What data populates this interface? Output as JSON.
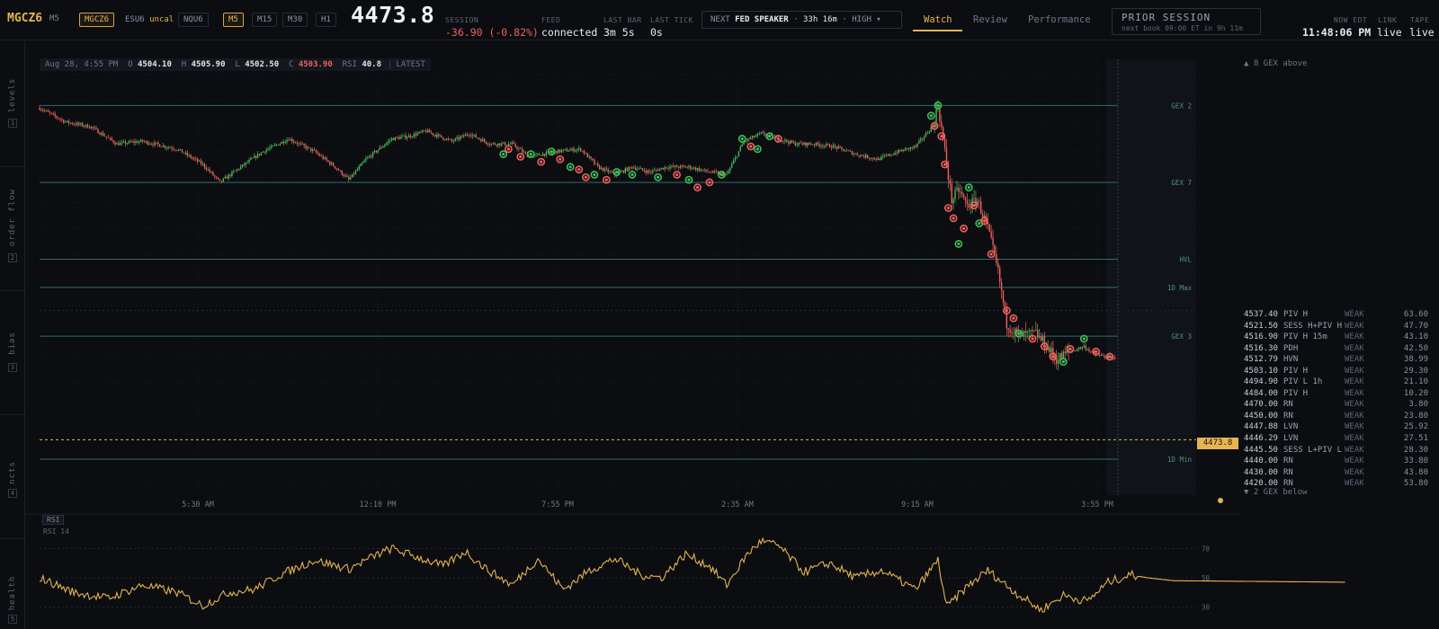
{
  "header": {
    "symbol": "MGCZ6",
    "timeframe": "M5",
    "instruments": [
      {
        "label": "MGCZ6",
        "active": true
      },
      {
        "label": "ESU6",
        "badge": "uncal",
        "active": false
      },
      {
        "label": "NQU6",
        "active": false
      }
    ],
    "timeframes": [
      {
        "label": "M5",
        "active": true
      },
      {
        "label": "M15",
        "active": false
      },
      {
        "label": "M30",
        "active": false
      },
      {
        "label": "H1",
        "active": false
      }
    ],
    "last_price": "4473.8",
    "session_label": "SESSION",
    "session_change": "-36.90 (-0.82%)",
    "feed_label": "FEED",
    "feed_value": "connected",
    "last_bar_label": "LAST BAR",
    "last_bar_value": "3m 5s",
    "last_tick_label": "LAST TICK",
    "last_tick_value": "0s",
    "event": {
      "prefix": "NEXT",
      "name": "FED SPEAKER",
      "countdown": "33h 16m",
      "impact": "HIGH",
      "chevron": "▾"
    },
    "tabs": [
      {
        "label": "Watch",
        "active": true
      },
      {
        "label": "Review",
        "active": false
      },
      {
        "label": "Performance",
        "active": false
      }
    ],
    "prior_session": {
      "title": "PRIOR SESSION",
      "subtitle": "next book 09:00 ET in 9h 11m"
    },
    "clock_label": "NOW EDT",
    "clock_value": "11:48:06 PM",
    "link_label": "LINK",
    "link_value": "live",
    "tape_label": "TAPE",
    "tape_value": "live"
  },
  "sidebar": [
    {
      "label": "levels",
      "num": "1"
    },
    {
      "label": "order flow",
      "num": "2"
    },
    {
      "label": "bias",
      "num": "3"
    },
    {
      "label": "ncts",
      "num": "4"
    },
    {
      "label": "health",
      "num": "5"
    }
  ],
  "ohlc": {
    "time": "Aug 28, 4:55 PM",
    "o_label": "O",
    "o": "4504.10",
    "h_label": "H",
    "h": "4505.90",
    "l_label": "L",
    "l": "4502.50",
    "c_label": "C",
    "c": "4503.90",
    "rsi_label": "RSI",
    "rsi": "40.8",
    "latest": "LATEST"
  },
  "gex_above": "▲ 8 GEX above",
  "gex_below": "▼ 2 GEX below",
  "current_price_tag": "4473.8",
  "levels": [
    {
      "price": "4537.40",
      "name": "PIV H",
      "strength": "WEAK",
      "score": "63.60"
    },
    {
      "price": "4521.50",
      "name": "SESS H+PIV H",
      "strength": "WEAK",
      "score": "47.70"
    },
    {
      "price": "4516.90",
      "name": "PIV H 15m",
      "strength": "WEAK",
      "score": "43.10"
    },
    {
      "price": "4516.30",
      "name": "PDH",
      "strength": "WEAK",
      "score": "42.50"
    },
    {
      "price": "4512.79",
      "name": "HVN",
      "strength": "WEAK",
      "score": "38.99"
    },
    {
      "price": "4503.10",
      "name": "PIV H",
      "strength": "WEAK",
      "score": "29.30"
    },
    {
      "price": "4494.90",
      "name": "PIV L 1h",
      "strength": "WEAK",
      "score": "21.10"
    },
    {
      "price": "4484.00",
      "name": "PIV H",
      "strength": "WEAK",
      "score": "10.20"
    },
    {
      "price": "4470.00",
      "name": "RN",
      "strength": "WEAK",
      "score": "3.80"
    },
    {
      "price": "4450.00",
      "name": "RN",
      "strength": "WEAK",
      "score": "23.80"
    },
    {
      "price": "4447.88",
      "name": "LVN",
      "strength": "WEAK",
      "score": "25.92"
    },
    {
      "price": "4446.29",
      "name": "LVN",
      "strength": "WEAK",
      "score": "27.51"
    },
    {
      "price": "4445.50",
      "name": "SESS L+PIV L",
      "strength": "WEAK",
      "score": "28.30"
    },
    {
      "price": "4440.00",
      "name": "RN",
      "strength": "WEAK",
      "score": "33.80"
    },
    {
      "price": "4430.00",
      "name": "RN",
      "strength": "WEAK",
      "score": "43.80"
    },
    {
      "price": "4420.00",
      "name": "RN",
      "strength": "WEAK",
      "score": "53.80"
    }
  ],
  "rsi_panel": {
    "badge": "RSI",
    "sub": "RSI 14"
  },
  "colors": {
    "accent": "#e6b450",
    "up": "#3fbf5a",
    "down": "#f0605d",
    "level_line": "#2f6f6a",
    "level_text": "#4f8f88",
    "grid": "#1a1e26"
  },
  "chart_data": [
    {
      "type": "candlestick",
      "x_ticks": [
        "5:30 AM",
        "12:10 PM",
        "7:55 PM",
        "2:35 AM",
        "9:15 AM",
        "3:55 PM"
      ],
      "ylim": [
        4463,
        4548
      ],
      "current_price": 4473.8,
      "level_lines": [
        {
          "label": "GEX 2",
          "value": 4539.0
        },
        {
          "label": "GEX 7",
          "value": 4524.0
        },
        {
          "label": "HVL",
          "value": 4509.0
        },
        {
          "label": "1D Max",
          "value": 4503.5
        },
        {
          "label": "GEX 3",
          "value": 4494.0
        },
        {
          "label": "1D Min",
          "value": 4470.0
        }
      ],
      "close_anchors": [
        [
          0,
          4538.5
        ],
        [
          15,
          4535.8
        ],
        [
          30,
          4534.8
        ],
        [
          45,
          4531.5
        ],
        [
          60,
          4532.0
        ],
        [
          80,
          4530.5
        ],
        [
          95,
          4527.5
        ],
        [
          105,
          4524.0
        ],
        [
          115,
          4526.5
        ],
        [
          130,
          4530.0
        ],
        [
          145,
          4532.5
        ],
        [
          160,
          4530.0
        ],
        [
          172,
          4527.0
        ],
        [
          180,
          4524.5
        ],
        [
          190,
          4528.5
        ],
        [
          205,
          4532.5
        ],
        [
          215,
          4533.0
        ],
        [
          225,
          4534.0
        ],
        [
          240,
          4532.0
        ],
        [
          250,
          4533.5
        ],
        [
          262,
          4531.5
        ],
        [
          275,
          4531.5
        ],
        [
          285,
          4529.0
        ],
        [
          300,
          4530.0
        ],
        [
          315,
          4530.5
        ],
        [
          325,
          4527.0
        ],
        [
          335,
          4525.5
        ],
        [
          345,
          4527.0
        ],
        [
          355,
          4526.0
        ],
        [
          365,
          4527.0
        ],
        [
          378,
          4527.0
        ],
        [
          390,
          4526.0
        ],
        [
          400,
          4525.5
        ],
        [
          410,
          4532.0
        ],
        [
          420,
          4533.5
        ],
        [
          430,
          4532.5
        ],
        [
          440,
          4531.5
        ],
        [
          450,
          4531.5
        ],
        [
          462,
          4531.0
        ],
        [
          475,
          4529.5
        ],
        [
          488,
          4528.5
        ],
        [
          500,
          4530.0
        ],
        [
          510,
          4531.0
        ],
        [
          520,
          4535.0
        ],
        [
          523,
          4539.0
        ],
        [
          527,
          4530.0
        ],
        [
          531,
          4520.5
        ],
        [
          535,
          4522.5
        ],
        [
          540,
          4519.5
        ],
        [
          546,
          4520.5
        ],
        [
          552,
          4515.0
        ],
        [
          558,
          4506.5
        ],
        [
          563,
          4496.5
        ],
        [
          570,
          4494.0
        ],
        [
          580,
          4494.5
        ],
        [
          585,
          4492.5
        ],
        [
          592,
          4489.5
        ],
        [
          600,
          4491.0
        ],
        [
          608,
          4492.0
        ],
        [
          614,
          4490.5
        ],
        [
          620,
          4490.0
        ],
        [
          626,
          4489.5
        ]
      ],
      "signal_markers": [
        {
          "side": "up",
          "x": 270,
          "y": 4529.5
        },
        {
          "side": "down",
          "x": 273,
          "y": 4530.5
        },
        {
          "side": "down",
          "x": 280,
          "y": 4529.0
        },
        {
          "side": "up",
          "x": 286,
          "y": 4529.5
        },
        {
          "side": "down",
          "x": 292,
          "y": 4528.0
        },
        {
          "side": "up",
          "x": 298,
          "y": 4530.0
        },
        {
          "side": "down",
          "x": 303,
          "y": 4528.5
        },
        {
          "side": "up",
          "x": 309,
          "y": 4527.0
        },
        {
          "side": "down",
          "x": 314,
          "y": 4526.5
        },
        {
          "side": "down",
          "x": 318,
          "y": 4525.0
        },
        {
          "side": "up",
          "x": 323,
          "y": 4525.5
        },
        {
          "side": "down",
          "x": 330,
          "y": 4524.5
        },
        {
          "side": "up",
          "x": 336,
          "y": 4526.0
        },
        {
          "side": "up",
          "x": 345,
          "y": 4525.5
        },
        {
          "side": "up",
          "x": 360,
          "y": 4525.0
        },
        {
          "side": "down",
          "x": 371,
          "y": 4525.5
        },
        {
          "side": "up",
          "x": 378,
          "y": 4524.5
        },
        {
          "side": "down",
          "x": 383,
          "y": 4523.0
        },
        {
          "side": "down",
          "x": 390,
          "y": 4524.0
        },
        {
          "side": "up",
          "x": 397,
          "y": 4525.5
        },
        {
          "side": "up",
          "x": 409,
          "y": 4532.5
        },
        {
          "side": "down",
          "x": 414,
          "y": 4531.0
        },
        {
          "side": "up",
          "x": 418,
          "y": 4530.5
        },
        {
          "side": "up",
          "x": 425,
          "y": 4533.0
        },
        {
          "side": "down",
          "x": 430,
          "y": 4532.5
        },
        {
          "side": "up",
          "x": 519,
          "y": 4537.0
        },
        {
          "side": "down",
          "x": 521,
          "y": 4535.0
        },
        {
          "side": "up",
          "x": 523,
          "y": 4539.0
        },
        {
          "side": "down",
          "x": 525,
          "y": 4533.0
        },
        {
          "side": "down",
          "x": 527,
          "y": 4527.5
        },
        {
          "side": "down",
          "x": 529,
          "y": 4519.0
        },
        {
          "side": "down",
          "x": 532,
          "y": 4517.0
        },
        {
          "side": "up",
          "x": 535,
          "y": 4512.0
        },
        {
          "side": "down",
          "x": 538,
          "y": 4515.0
        },
        {
          "side": "up",
          "x": 541,
          "y": 4523.0
        },
        {
          "side": "down",
          "x": 544,
          "y": 4519.5
        },
        {
          "side": "up",
          "x": 547,
          "y": 4516.0
        },
        {
          "side": "down",
          "x": 550,
          "y": 4516.5
        },
        {
          "side": "down",
          "x": 554,
          "y": 4510.0
        },
        {
          "side": "down",
          "x": 563,
          "y": 4499.0
        },
        {
          "side": "down",
          "x": 567,
          "y": 4497.5
        },
        {
          "side": "up",
          "x": 570,
          "y": 4494.5
        },
        {
          "side": "down",
          "x": 578,
          "y": 4493.5
        },
        {
          "side": "down",
          "x": 585,
          "y": 4492.0
        },
        {
          "side": "down",
          "x": 590,
          "y": 4490.0
        },
        {
          "side": "up",
          "x": 596,
          "y": 4489.0
        },
        {
          "side": "down",
          "x": 600,
          "y": 4491.5
        },
        {
          "side": "up",
          "x": 608,
          "y": 4493.5
        },
        {
          "side": "down",
          "x": 615,
          "y": 4491.0
        },
        {
          "side": "down",
          "x": 623,
          "y": 4490.0
        }
      ]
    },
    {
      "type": "line",
      "name": "RSI 14",
      "ylim": [
        20,
        80
      ],
      "y_ticks": [
        70,
        50,
        30
      ],
      "anchors": [
        [
          0,
          50
        ],
        [
          20,
          40
        ],
        [
          40,
          36
        ],
        [
          60,
          45
        ],
        [
          80,
          40
        ],
        [
          95,
          31
        ],
        [
          110,
          40
        ],
        [
          125,
          42
        ],
        [
          140,
          52
        ],
        [
          160,
          62
        ],
        [
          180,
          56
        ],
        [
          195,
          65
        ],
        [
          205,
          70
        ],
        [
          220,
          64
        ],
        [
          235,
          58
        ],
        [
          248,
          68
        ],
        [
          260,
          56
        ],
        [
          275,
          45
        ],
        [
          290,
          63
        ],
        [
          305,
          42
        ],
        [
          320,
          55
        ],
        [
          335,
          63
        ],
        [
          350,
          52
        ],
        [
          362,
          50
        ],
        [
          376,
          66
        ],
        [
          390,
          58
        ],
        [
          400,
          45
        ],
        [
          412,
          66
        ],
        [
          420,
          75
        ],
        [
          430,
          72
        ],
        [
          445,
          54
        ],
        [
          460,
          60
        ],
        [
          475,
          50
        ],
        [
          490,
          55
        ],
        [
          510,
          42
        ],
        [
          523,
          62
        ],
        [
          528,
          30
        ],
        [
          540,
          44
        ],
        [
          552,
          55
        ],
        [
          568,
          40
        ],
        [
          583,
          28
        ],
        [
          596,
          38
        ],
        [
          610,
          34
        ],
        [
          622,
          47
        ],
        [
          635,
          52
        ],
        [
          645,
          50
        ],
        [
          660,
          48
        ],
        [
          760,
          47
        ]
      ]
    }
  ]
}
